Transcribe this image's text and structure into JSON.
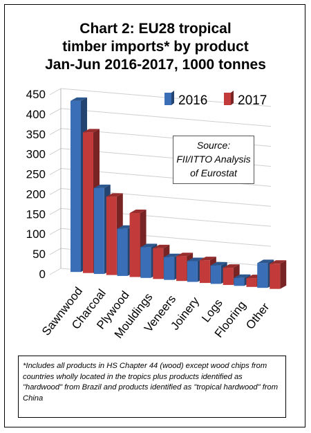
{
  "title_lines": [
    "Chart 2: EU28 tropical",
    "timber imports* by product",
    "Jan-Jun 2016-2017, 1000 tonnes"
  ],
  "source_lines": [
    "Source:",
    "FII/ITTO Analysis",
    "of Eurostat"
  ],
  "footnote": "*Includes all products in HS Chapter 44 (wood) except wood chips from countries wholly located in the tropics plus products identified as \"hardwood\" from Brazil and products identified as \"tropical hardwood\" from China",
  "chart_data": {
    "type": "bar",
    "title": "Chart 2: EU28 tropical timber imports* by product Jan-Jun 2016-2017, 1000 tonnes",
    "categories": [
      "Sawnwood",
      "Charcoal",
      "Plywood",
      "Mouldings",
      "Veneers",
      "Joinery",
      "Logs",
      "Flooring",
      "Other"
    ],
    "series": [
      {
        "name": "2016",
        "color": "#3a6fb7",
        "values": [
          428,
          215,
          118,
          77,
          57,
          52,
          46,
          20,
          62
        ]
      },
      {
        "name": "2017",
        "color": "#c33a3a",
        "values": [
          352,
          196,
          160,
          77,
          62,
          57,
          43,
          22,
          63
        ]
      }
    ],
    "yticks": [
      0,
      50,
      100,
      150,
      200,
      250,
      300,
      350,
      400,
      450
    ],
    "ylim": [
      0,
      450
    ],
    "grid": true,
    "legend": "top-right"
  }
}
